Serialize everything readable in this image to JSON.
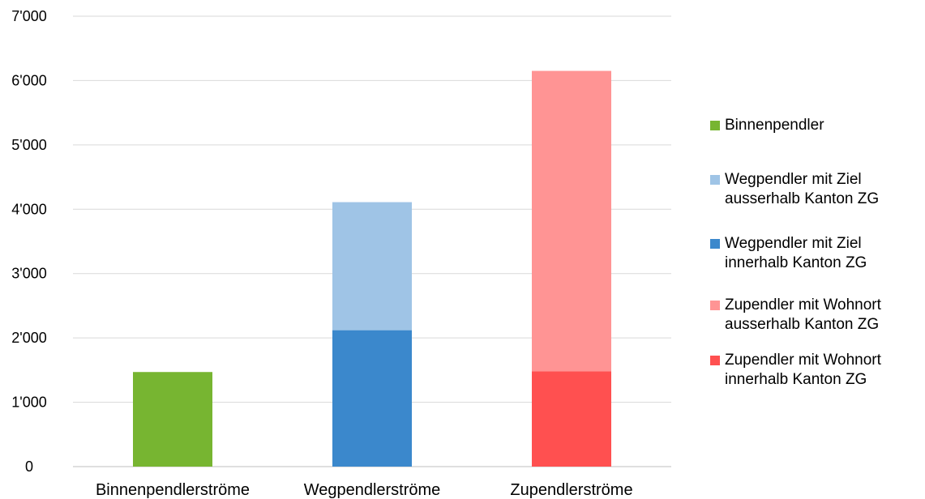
{
  "chart_data": {
    "type": "bar",
    "stacked": true,
    "categories": [
      "Binnenpendlerströme",
      "Wegpendlerströme",
      "Zupendlerströme"
    ],
    "ylim": [
      0,
      7000
    ],
    "y_ticks": [
      0,
      1000,
      2000,
      3000,
      4000,
      5000,
      6000,
      7000
    ],
    "y_tick_labels": [
      "0",
      "1'000",
      "2'000",
      "3'000",
      "4'000",
      "5'000",
      "6'000",
      "7'000"
    ],
    "grid": true,
    "legend_position": "right",
    "series": [
      {
        "name": "Binnenpendler",
        "color": "#77b531",
        "values": [
          1470,
          0,
          0
        ]
      },
      {
        "name": "Wegpendler mit Ziel innerhalb Kanton ZG",
        "color": "#3b88cc",
        "values": [
          0,
          2120,
          0
        ]
      },
      {
        "name": "Wegpendler mit Ziel ausserhalb Kanton ZG",
        "color": "#9fc4e6",
        "values": [
          0,
          1990,
          0
        ]
      },
      {
        "name": "Zupendler mit Wohnort innerhalb Kanton ZG",
        "color": "#ff5050",
        "values": [
          0,
          0,
          1480
        ]
      },
      {
        "name": "Zupendler mit Wohnort ausserhalb Kanton ZG",
        "color": "#ff9494",
        "values": [
          0,
          0,
          4670
        ]
      }
    ]
  },
  "legend": [
    {
      "label": "Binnenpendler",
      "color": "#77b531"
    },
    {
      "label": "Wegpendler mit Ziel\nausserhalb Kanton ZG",
      "color": "#9fc4e6"
    },
    {
      "label": "Wegpendler mit Ziel\ninnerhalb Kanton ZG",
      "color": "#3b88cc"
    },
    {
      "label": "Zupendler mit Wohnort\nausserhalb Kanton ZG",
      "color": "#ff9494"
    },
    {
      "label": "Zupendler mit Wohnort\ninnerhalb Kanton ZG",
      "color": "#ff5050"
    }
  ]
}
